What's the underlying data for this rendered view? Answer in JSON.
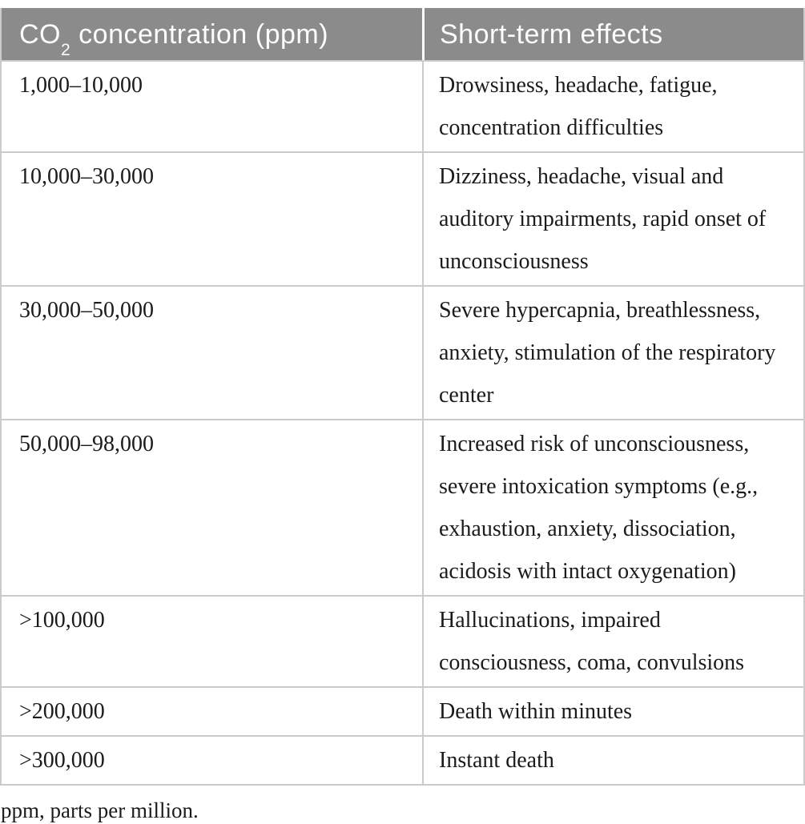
{
  "table": {
    "header": {
      "col1_prefix": "CO",
      "col1_sub": "2",
      "col1_suffix": " concentration (ppm)",
      "col2": "Short-term effects"
    },
    "rows": [
      {
        "concentration": "1,000–10,000",
        "effects": "Drowsiness, headache, fatigue,\nconcentration difficulties"
      },
      {
        "concentration": "10,000–30,000",
        "effects": "Dizziness, headache, visual and\nauditory impairments, rapid onset of\nunconsciousness"
      },
      {
        "concentration": "30,000–50,000",
        "effects": "Severe hypercapnia, breathlessness,\nanxiety, stimulation of the respiratory\ncenter"
      },
      {
        "concentration": "50,000–98,000",
        "effects": "Increased risk of unconsciousness,\nsevere intoxication symptoms (e.g.,\nexhaustion, anxiety, dissociation,\nacidosis with intact oxygenation)"
      },
      {
        "concentration": ">100,000",
        "effects": "Hallucinations, impaired\nconsciousness, coma, convulsions"
      },
      {
        "concentration": ">200,000",
        "effects": "Death within minutes"
      },
      {
        "concentration": ">300,000",
        "effects": "Instant death"
      }
    ],
    "footnote": "ppm, parts per million."
  },
  "colors": {
    "header_background": "#8b8b8b",
    "header_text": "#fdfdfd",
    "border": "#cbcbcb",
    "body_text": "#1b1b1b"
  }
}
